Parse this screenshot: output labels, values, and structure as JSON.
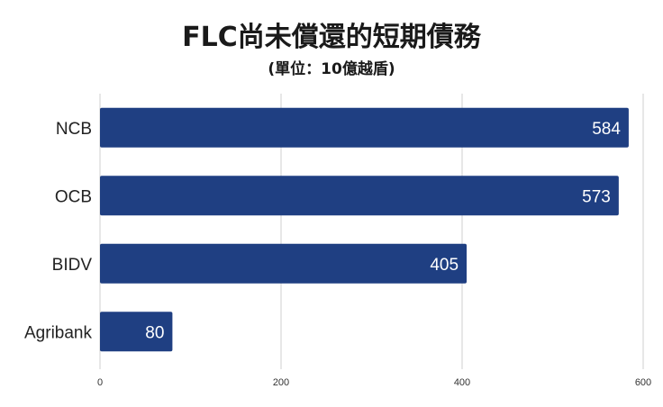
{
  "chart_data": {
    "type": "bar",
    "orientation": "horizontal",
    "title": "FLC尚未償還的短期債務",
    "subtitle": "(單位：10億越盾)",
    "categories": [
      "NCB",
      "OCB",
      "BIDV",
      "Agribank"
    ],
    "values": [
      584,
      573,
      405,
      80
    ],
    "xlim": [
      0,
      600
    ],
    "xticks": [
      0,
      200,
      400,
      600
    ],
    "grid": "vertical",
    "bar_color": "#1f3f82",
    "data_labels": "inside-end",
    "legend": "none"
  }
}
